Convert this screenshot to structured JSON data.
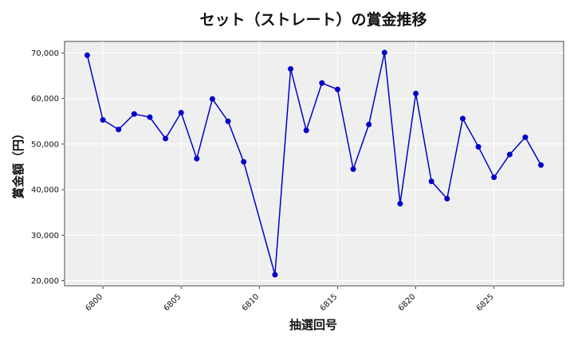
{
  "chart_data": {
    "type": "line",
    "title": "セット（ストレート）の賞金推移",
    "xlabel": "抽選回号",
    "ylabel": "賞金額（円）",
    "x": [
      6799,
      6800,
      6801,
      6802,
      6803,
      6804,
      6805,
      6806,
      6807,
      6808,
      6809,
      6811,
      6812,
      6813,
      6814,
      6815,
      6816,
      6817,
      6818,
      6819,
      6820,
      6821,
      6822,
      6823,
      6824,
      6825,
      6826,
      6827,
      6828
    ],
    "series": [
      {
        "values": [
          69500,
          55300,
          53200,
          56600,
          55900,
          51200,
          56900,
          46800,
          59900,
          55000,
          46100,
          21300,
          66500,
          53000,
          63400,
          62000,
          44500,
          54300,
          70100,
          36900,
          61100,
          41800,
          38000,
          55600,
          49400,
          42700,
          47700,
          51500,
          45400
        ],
        "color": "#0000cc"
      }
    ],
    "xticks": [
      6800,
      6805,
      6810,
      6815,
      6820,
      6825
    ],
    "xtick_labels": [
      "6800",
      "6805",
      "6810",
      "6815",
      "6820",
      "6825"
    ],
    "yticks": [
      20000,
      30000,
      40000,
      50000,
      60000,
      70000
    ],
    "ytick_labels": [
      "20,000",
      "30,000",
      "40,000",
      "50,000",
      "60,000",
      "70,000"
    ],
    "xlim": [
      6797.55,
      6829.45
    ],
    "ylim": [
      18860,
      72540
    ],
    "grid": true,
    "background": "#efefef"
  }
}
